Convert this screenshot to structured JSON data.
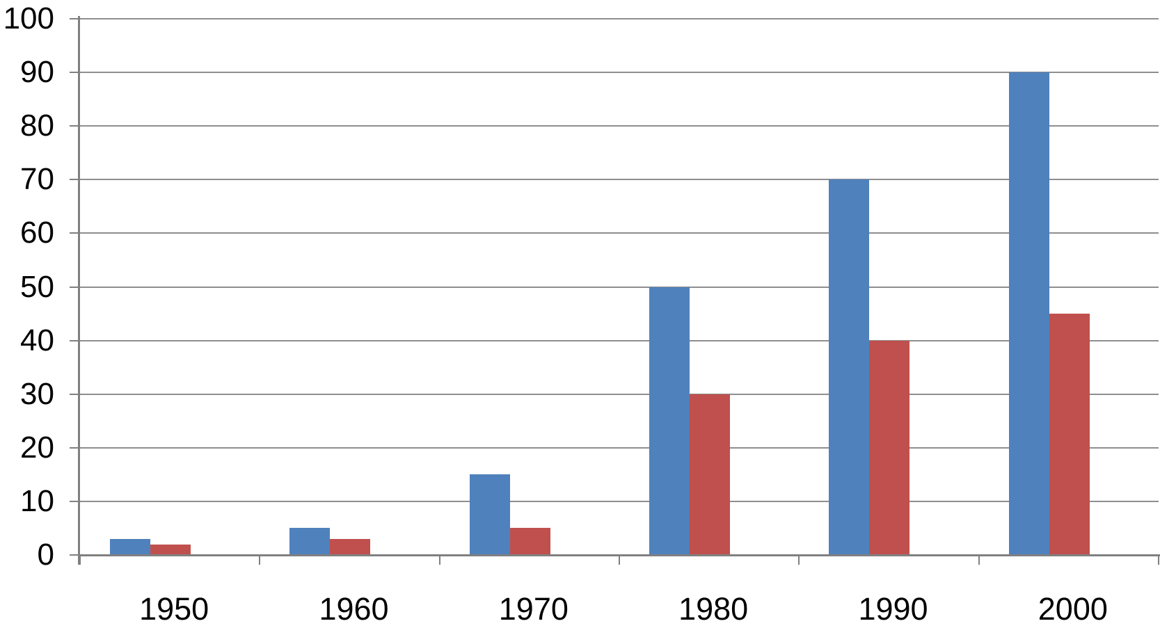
{
  "chart_data": {
    "type": "bar",
    "title": "",
    "xlabel": "",
    "ylabel": "",
    "categories": [
      "1950",
      "1960",
      "1970",
      "1980",
      "1990",
      "2000"
    ],
    "series": [
      {
        "name": "blue",
        "color": "#4F81BD",
        "values": [
          3,
          5,
          15,
          50,
          70,
          90
        ]
      },
      {
        "name": "red",
        "color": "#C0504D",
        "values": [
          2,
          3,
          5,
          30,
          40,
          45
        ]
      }
    ],
    "ylim": [
      0,
      100
    ],
    "ytick_step": 10,
    "ytick_labels": [
      "0",
      "10",
      "20",
      "30",
      "40",
      "50",
      "60",
      "70",
      "80",
      "90",
      "100"
    ],
    "grid": true,
    "legend_position": "none"
  },
  "colors": {
    "background": "#FFFFFF",
    "gridline": "#8E8E8E",
    "axis": "#808080",
    "tick_label": "#000000"
  }
}
